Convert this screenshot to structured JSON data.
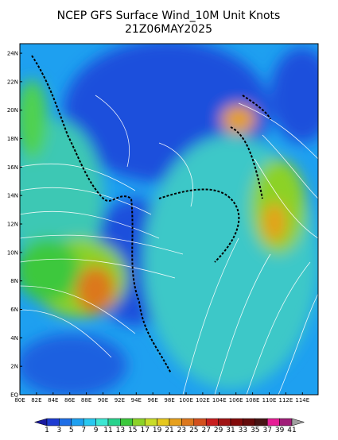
{
  "title": "NCEP GFS Surface Wind_10M Unit Knots",
  "subtitle": "21Z06MAY2025",
  "lat_labels": [
    "EQ",
    "2N",
    "4N",
    "6N",
    "8N",
    "10N",
    "12N",
    "14N",
    "16N",
    "18N",
    "20N",
    "22N",
    "24N"
  ],
  "lon_labels": [
    "80E",
    "82E",
    "84E",
    "86E",
    "88E",
    "90E",
    "92E",
    "94E",
    "96E",
    "98E",
    "100E",
    "102E",
    "104E",
    "106E",
    "108E",
    "110E",
    "112E",
    "114E"
  ],
  "colorbar": {
    "labels": [
      1,
      3,
      5,
      7,
      9,
      11,
      13,
      15,
      17,
      19,
      21,
      23,
      25,
      27,
      29,
      31,
      33,
      35,
      37,
      39,
      41
    ],
    "colors": [
      "#1a1aa0",
      "#1e3cd2",
      "#1e6ee6",
      "#1ea0f0",
      "#28c8f0",
      "#3ce6d2",
      "#28d28c",
      "#3cc83c",
      "#8cd228",
      "#c8dc28",
      "#e6c81e",
      "#e6a01e",
      "#dc781e",
      "#d2501e",
      "#c81e1e",
      "#a01414",
      "#820a0a",
      "#640a0a",
      "#461414",
      "#e61e96",
      "#a01e78",
      "#a0a0a0"
    ]
  }
}
